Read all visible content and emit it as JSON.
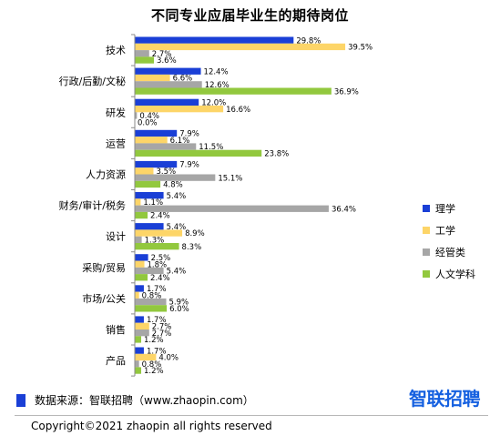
{
  "chart_data": {
    "type": "bar",
    "orientation": "horizontal",
    "title": "不同专业应届毕业生的期待岗位",
    "categories": [
      "技术",
      "行政/后勤/文秘",
      "研发",
      "运营",
      "人力资源",
      "财务/审计/税务",
      "设计",
      "采购/贸易",
      "市场/公关",
      "销售",
      "产品"
    ],
    "series": [
      {
        "name": "理学",
        "color": "#1a3fd6",
        "values": [
          29.8,
          12.4,
          12.0,
          7.9,
          7.9,
          5.4,
          5.4,
          2.5,
          1.7,
          1.7,
          1.7
        ],
        "labels": [
          "29.8%",
          "12.4%",
          "12.0%",
          "7.9%",
          "7.9%",
          "5.4%",
          "5.4%",
          "2.5%",
          "1.7%",
          "1.7%",
          "1.7%"
        ]
      },
      {
        "name": "工学",
        "color": "#fdd568",
        "values": [
          39.5,
          6.6,
          16.6,
          6.1,
          3.5,
          1.1,
          8.9,
          1.8,
          0.8,
          2.7,
          4.0
        ],
        "labels": [
          "39.5%",
          "6.6%",
          "16.6%",
          "6.1%",
          "3.5%",
          "1.1%",
          "8.9%",
          "1.8%",
          "0.8%",
          "2.7%",
          "4.0%"
        ]
      },
      {
        "name": "经管类",
        "color": "#a6a6a6",
        "values": [
          2.7,
          12.6,
          0.4,
          11.5,
          15.1,
          36.4,
          1.3,
          5.4,
          5.9,
          2.7,
          0.8
        ],
        "labels": [
          "2.7%",
          "12.6%",
          "0.4%",
          "11.5%",
          "15.1%",
          "36.4%",
          "1.3%",
          "5.4%",
          "5.9%",
          "2.7%",
          "0.8%"
        ]
      },
      {
        "name": "人文学科",
        "color": "#92c83e",
        "values": [
          3.6,
          36.9,
          0.0,
          23.8,
          4.8,
          2.4,
          8.3,
          2.4,
          6.0,
          1.2,
          1.2
        ],
        "labels": [
          "3.6%",
          "36.9%",
          "0.0%",
          "23.8%",
          "4.8%",
          "2.4%",
          "8.3%",
          "2.4%",
          "6.0%",
          "1.2%",
          "1.2%"
        ]
      }
    ],
    "xlim": [
      0,
      40
    ],
    "legend": "right",
    "grid": false
  },
  "footer": {
    "source": "数据来源：智联招聘（www.zhaopin.com）",
    "brand": "智联招聘",
    "copyright": "Copyright©2021 zhaopin all rights reserved"
  }
}
